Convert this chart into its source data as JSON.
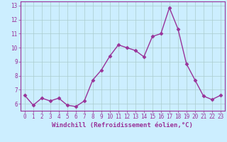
{
  "x": [
    0,
    1,
    2,
    3,
    4,
    5,
    6,
    7,
    8,
    9,
    10,
    11,
    12,
    13,
    14,
    15,
    16,
    17,
    18,
    19,
    20,
    21,
    22,
    23
  ],
  "y": [
    6.6,
    5.9,
    6.4,
    6.2,
    6.4,
    5.9,
    5.8,
    6.2,
    7.7,
    8.4,
    9.4,
    10.2,
    10.0,
    9.8,
    9.35,
    10.8,
    11.0,
    12.85,
    11.35,
    8.85,
    7.7,
    6.55,
    6.3,
    6.6
  ],
  "line_color": "#993399",
  "marker": "D",
  "markersize": 2.5,
  "linewidth": 1.0,
  "xlabel": "Windchill (Refroidissement éolien,°C)",
  "xlabel_fontsize": 6.5,
  "xlim": [
    -0.5,
    23.5
  ],
  "ylim": [
    5.5,
    13.3
  ],
  "yticks": [
    6,
    7,
    8,
    9,
    10,
    11,
    12,
    13
  ],
  "xticks": [
    0,
    1,
    2,
    3,
    4,
    5,
    6,
    7,
    8,
    9,
    10,
    11,
    12,
    13,
    14,
    15,
    16,
    17,
    18,
    19,
    20,
    21,
    22,
    23
  ],
  "tick_fontsize": 5.5,
  "bg_color": "#cceeff",
  "grid_color": "#aacccc",
  "label_color": "#993399",
  "tick_color": "#993399",
  "spine_color": "#993399"
}
